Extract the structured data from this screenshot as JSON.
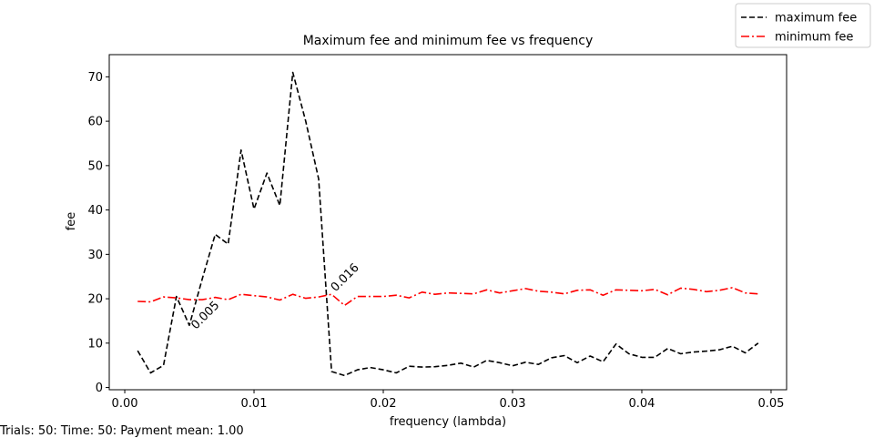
{
  "footnote": "Trials: 50: Time: 50: Payment mean: 1.00",
  "chart_data": {
    "type": "line",
    "title": "Maximum fee and minimum fee vs frequency",
    "xlabel": "frequency (lambda)",
    "ylabel": "fee",
    "xlim": [
      -0.0012,
      0.0512
    ],
    "ylim": [
      -0.5,
      75
    ],
    "xticks": [
      0.0,
      0.01,
      0.02,
      0.03,
      0.04,
      0.05
    ],
    "xtick_labels": [
      "0.00",
      "0.01",
      "0.02",
      "0.03",
      "0.04",
      "0.05"
    ],
    "yticks": [
      0,
      10,
      20,
      30,
      40,
      50,
      60,
      70
    ],
    "ytick_labels": [
      "0",
      "10",
      "20",
      "30",
      "40",
      "50",
      "60",
      "70"
    ],
    "grid": false,
    "legend_position": "top-right (outside plot)",
    "x": [
      0.001,
      0.002,
      0.003,
      0.004,
      0.005,
      0.006,
      0.007,
      0.008,
      0.009,
      0.01,
      0.011,
      0.012,
      0.013,
      0.014,
      0.015,
      0.016,
      0.017,
      0.018,
      0.019,
      0.02,
      0.021,
      0.022,
      0.023,
      0.024,
      0.025,
      0.026,
      0.027,
      0.028,
      0.029,
      0.03,
      0.031,
      0.032,
      0.033,
      0.034,
      0.035,
      0.036,
      0.037,
      0.038,
      0.039,
      0.04,
      0.041,
      0.042,
      0.043,
      0.044,
      0.045,
      0.046,
      0.047,
      0.048,
      0.049
    ],
    "series": [
      {
        "name": "maximum fee",
        "color": "#000000",
        "style": "dashed",
        "values": [
          8.3,
          3.3,
          5.0,
          20.5,
          14.0,
          24.5,
          34.5,
          32.3,
          53.5,
          40.2,
          48.3,
          41.0,
          71.0,
          60.0,
          47.0,
          3.6,
          2.7,
          4.0,
          4.5,
          4.0,
          3.3,
          4.8,
          4.6,
          4.7,
          5.0,
          5.5,
          4.6,
          6.1,
          5.6,
          4.9,
          5.7,
          5.2,
          6.7,
          7.2,
          5.6,
          7.1,
          5.8,
          9.8,
          7.6,
          6.8,
          6.8,
          8.8,
          7.6,
          8.0,
          8.2,
          8.5,
          9.3,
          7.8,
          10.0
        ]
      },
      {
        "name": "minimum fee",
        "color": "#ff0000",
        "style": "dashdot",
        "values": [
          19.4,
          19.3,
          20.4,
          20.2,
          19.8,
          19.8,
          20.3,
          19.8,
          21.0,
          20.7,
          20.4,
          19.7,
          21.0,
          20.1,
          20.4,
          21.0,
          18.5,
          20.5,
          20.5,
          20.5,
          20.8,
          20.2,
          21.5,
          21.0,
          21.3,
          21.2,
          21.1,
          22.0,
          21.3,
          21.8,
          22.3,
          21.7,
          21.5,
          21.1,
          21.9,
          22.0,
          20.8,
          22.0,
          21.9,
          21.8,
          22.1,
          20.9,
          22.4,
          22.1,
          21.6,
          21.9,
          22.5,
          21.3,
          21.1
        ]
      }
    ],
    "annotations": [
      {
        "text": "0.005",
        "x": 0.0055,
        "y": 13.0
      },
      {
        "text": "0.016",
        "x": 0.0163,
        "y": 21.5
      }
    ]
  }
}
